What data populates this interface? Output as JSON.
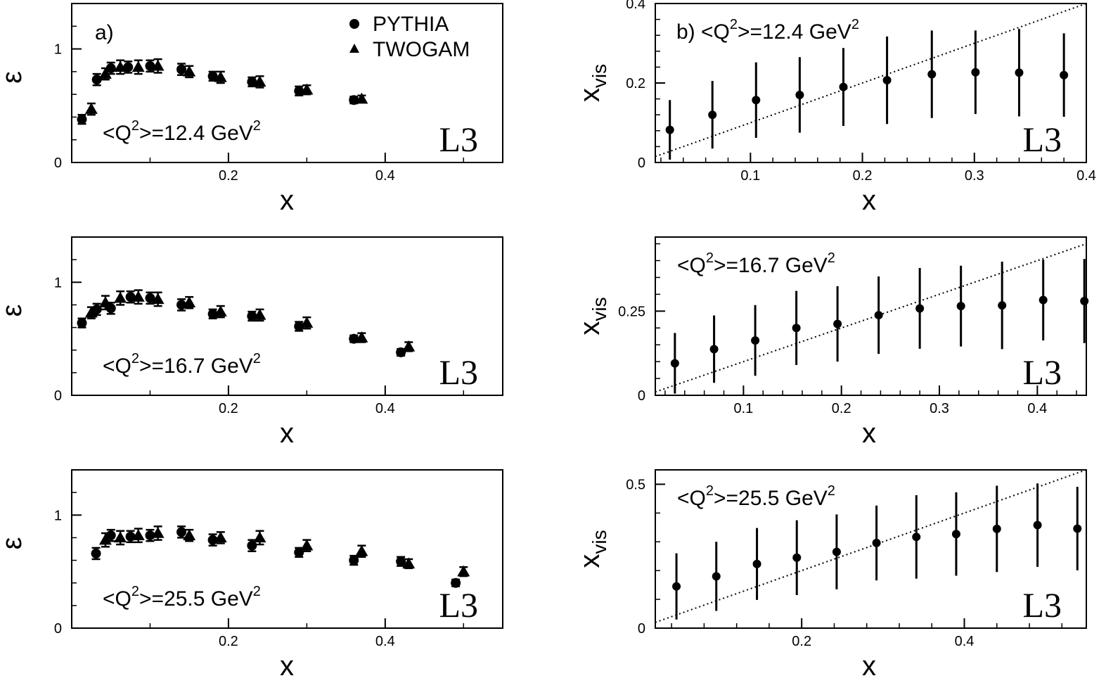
{
  "figure": {
    "legend": [
      {
        "name": "PYTHIA",
        "marker": "circle"
      },
      {
        "name": "TWOGAM",
        "marker": "triangle"
      }
    ],
    "logo_text": "L3",
    "colors": {
      "ink": "#000000",
      "background": "#ffffff"
    }
  },
  "chart_data": [
    {
      "id": "a1",
      "type": "scatter",
      "panel_label": "a)",
      "annotation": {
        "prefix": "<Q",
        "sup": "2",
        "mid": ">=12.4 GeV",
        "sup2": "2"
      },
      "xlabel": "x",
      "ylabel": "ε",
      "xlim": [
        0,
        0.55
      ],
      "ylim": [
        0,
        1.4
      ],
      "xticks": [
        0.2,
        0.4
      ],
      "yticks": [
        0,
        1
      ],
      "x_major_minor": [
        0.1,
        0.3,
        0.5
      ],
      "y_minor": [
        0.5,
        1.2
      ],
      "legend": true,
      "series": [
        {
          "name": "PYTHIA",
          "marker": "circle",
          "points": [
            [
              0.013,
              0.38,
              0.04
            ],
            [
              0.032,
              0.73,
              0.05
            ],
            [
              0.05,
              0.83,
              0.05
            ],
            [
              0.072,
              0.84,
              0.05
            ],
            [
              0.1,
              0.85,
              0.05
            ],
            [
              0.14,
              0.82,
              0.05
            ],
            [
              0.18,
              0.76,
              0.04
            ],
            [
              0.23,
              0.71,
              0.04
            ],
            [
              0.29,
              0.63,
              0.04
            ],
            [
              0.36,
              0.55,
              0.03
            ]
          ]
        },
        {
          "name": "TWOGAM",
          "marker": "triangle",
          "points": [
            [
              0.025,
              0.47,
              0.05
            ],
            [
              0.043,
              0.78,
              0.05
            ],
            [
              0.062,
              0.84,
              0.06
            ],
            [
              0.085,
              0.84,
              0.06
            ],
            [
              0.11,
              0.85,
              0.06
            ],
            [
              0.15,
              0.8,
              0.05
            ],
            [
              0.19,
              0.75,
              0.05
            ],
            [
              0.24,
              0.71,
              0.05
            ],
            [
              0.3,
              0.64,
              0.04
            ],
            [
              0.37,
              0.56,
              0.03
            ]
          ]
        }
      ]
    },
    {
      "id": "b1",
      "type": "scatter",
      "panel_label": "b)",
      "annotation": {
        "prefix": "<Q",
        "sup": "2",
        "mid": ">=12.4 GeV",
        "sup2": "2"
      },
      "xlabel": "x",
      "ylabel": "x",
      "ylabel_sub": "vis",
      "xlim": [
        0.015,
        0.4
      ],
      "ylim": [
        0,
        0.4
      ],
      "xticks": [
        0.1,
        0.2,
        0.3,
        0.4
      ],
      "yticks": [
        0,
        0.2,
        0.4
      ],
      "diagonal": true,
      "series": [
        {
          "name": "",
          "marker": "circle",
          "points": [
            [
              0.028,
              0.082,
              0.075
            ],
            [
              0.066,
              0.12,
              0.085
            ],
            [
              0.105,
              0.157,
              0.095
            ],
            [
              0.144,
              0.17,
              0.095
            ],
            [
              0.183,
              0.19,
              0.098
            ],
            [
              0.222,
              0.207,
              0.11
            ],
            [
              0.262,
              0.222,
              0.11
            ],
            [
              0.301,
              0.227,
              0.105
            ],
            [
              0.34,
              0.226,
              0.11
            ],
            [
              0.38,
              0.22,
              0.105
            ]
          ]
        }
      ]
    },
    {
      "id": "a2",
      "type": "scatter",
      "annotation": {
        "prefix": "<Q",
        "sup": "2",
        "mid": ">=16.7 GeV",
        "sup2": "2"
      },
      "xlabel": "x",
      "ylabel": "ε",
      "xlim": [
        0,
        0.55
      ],
      "ylim": [
        0,
        1.4
      ],
      "xticks": [
        0.2,
        0.4
      ],
      "yticks": [
        0,
        1
      ],
      "x_major_minor": [
        0.1,
        0.3,
        0.5
      ],
      "y_minor": [
        0.5,
        1.2
      ],
      "series": [
        {
          "name": "PYTHIA",
          "marker": "circle",
          "points": [
            [
              0.013,
              0.64,
              0.04
            ],
            [
              0.032,
              0.76,
              0.05
            ],
            [
              0.05,
              0.77,
              0.05
            ],
            [
              0.075,
              0.87,
              0.05
            ],
            [
              0.1,
              0.86,
              0.05
            ],
            [
              0.14,
              0.8,
              0.05
            ],
            [
              0.18,
              0.72,
              0.04
            ],
            [
              0.23,
              0.7,
              0.04
            ],
            [
              0.29,
              0.61,
              0.04
            ],
            [
              0.36,
              0.5,
              0.03
            ],
            [
              0.42,
              0.38,
              0.03
            ]
          ]
        },
        {
          "name": "TWOGAM",
          "marker": "triangle",
          "points": [
            [
              0.025,
              0.73,
              0.05
            ],
            [
              0.043,
              0.82,
              0.06
            ],
            [
              0.062,
              0.86,
              0.06
            ],
            [
              0.085,
              0.87,
              0.06
            ],
            [
              0.11,
              0.85,
              0.06
            ],
            [
              0.15,
              0.82,
              0.05
            ],
            [
              0.19,
              0.74,
              0.05
            ],
            [
              0.24,
              0.71,
              0.05
            ],
            [
              0.3,
              0.64,
              0.05
            ],
            [
              0.37,
              0.51,
              0.04
            ],
            [
              0.43,
              0.43,
              0.04
            ]
          ]
        }
      ]
    },
    {
      "id": "b2",
      "type": "scatter",
      "annotation": {
        "prefix": "<Q",
        "sup": "2",
        "mid": ">=16.7 GeV",
        "sup2": "2"
      },
      "xlabel": "x",
      "ylabel": "x",
      "ylabel_sub": "vis",
      "xlim": [
        0.01,
        0.45
      ],
      "ylim": [
        0,
        0.47
      ],
      "xticks": [
        0.1,
        0.2,
        0.3,
        0.4
      ],
      "yticks": [
        0,
        0.25
      ],
      "diagonal": true,
      "series": [
        {
          "name": "",
          "marker": "circle",
          "points": [
            [
              0.03,
              0.095,
              0.09
            ],
            [
              0.07,
              0.137,
              0.1
            ],
            [
              0.112,
              0.163,
              0.105
            ],
            [
              0.154,
              0.2,
              0.11
            ],
            [
              0.196,
              0.212,
              0.112
            ],
            [
              0.238,
              0.238,
              0.115
            ],
            [
              0.28,
              0.258,
              0.12
            ],
            [
              0.322,
              0.265,
              0.12
            ],
            [
              0.364,
              0.267,
              0.13
            ],
            [
              0.406,
              0.283,
              0.12
            ],
            [
              0.448,
              0.28,
              0.125
            ]
          ]
        }
      ]
    },
    {
      "id": "a3",
      "type": "scatter",
      "annotation": {
        "prefix": "<Q",
        "sup": "2",
        "mid": ">=25.5 GeV",
        "sup2": "2"
      },
      "xlabel": "x",
      "ylabel": "ε",
      "xlim": [
        0,
        0.55
      ],
      "ylim": [
        0,
        1.4
      ],
      "xticks": [
        0.2,
        0.4
      ],
      "yticks": [
        0,
        1
      ],
      "x_major_minor": [
        0.1,
        0.3,
        0.5
      ],
      "y_minor": [
        0.5,
        1.2
      ],
      "series": [
        {
          "name": "PYTHIA",
          "marker": "circle",
          "points": [
            [
              0.031,
              0.66,
              0.05
            ],
            [
              0.05,
              0.82,
              0.05
            ],
            [
              0.075,
              0.81,
              0.05
            ],
            [
              0.1,
              0.82,
              0.05
            ],
            [
              0.14,
              0.85,
              0.05
            ],
            [
              0.18,
              0.78,
              0.05
            ],
            [
              0.23,
              0.73,
              0.05
            ],
            [
              0.29,
              0.67,
              0.04
            ],
            [
              0.36,
              0.6,
              0.04
            ],
            [
              0.42,
              0.59,
              0.04
            ],
            [
              0.49,
              0.4,
              0.03
            ]
          ]
        },
        {
          "name": "TWOGAM",
          "marker": "triangle",
          "points": [
            [
              0.043,
              0.78,
              0.06
            ],
            [
              0.062,
              0.8,
              0.06
            ],
            [
              0.085,
              0.82,
              0.06
            ],
            [
              0.11,
              0.84,
              0.06
            ],
            [
              0.15,
              0.82,
              0.05
            ],
            [
              0.19,
              0.8,
              0.05
            ],
            [
              0.24,
              0.8,
              0.06
            ],
            [
              0.3,
              0.73,
              0.05
            ],
            [
              0.37,
              0.68,
              0.05
            ],
            [
              0.43,
              0.57,
              0.04
            ],
            [
              0.5,
              0.5,
              0.04
            ]
          ]
        }
      ]
    },
    {
      "id": "b3",
      "type": "scatter",
      "annotation": {
        "prefix": "<Q",
        "sup": "2",
        "mid": ">=25.5 GeV",
        "sup2": "2"
      },
      "xlabel": "x",
      "ylabel": "x",
      "ylabel_sub": "vis",
      "xlim": [
        0.02,
        0.55
      ],
      "ylim": [
        0,
        0.55
      ],
      "xticks": [
        0.2,
        0.4
      ],
      "yticks": [
        0,
        0.5
      ],
      "diagonal": true,
      "series": [
        {
          "name": "",
          "marker": "circle",
          "points": [
            [
              0.046,
              0.145,
              0.115
            ],
            [
              0.095,
              0.18,
              0.12
            ],
            [
              0.145,
              0.223,
              0.125
            ],
            [
              0.194,
              0.245,
              0.13
            ],
            [
              0.243,
              0.265,
              0.13
            ],
            [
              0.292,
              0.296,
              0.13
            ],
            [
              0.341,
              0.317,
              0.145
            ],
            [
              0.39,
              0.327,
              0.145
            ],
            [
              0.44,
              0.345,
              0.15
            ],
            [
              0.49,
              0.358,
              0.145
            ],
            [
              0.539,
              0.346,
              0.145
            ]
          ]
        }
      ]
    }
  ]
}
